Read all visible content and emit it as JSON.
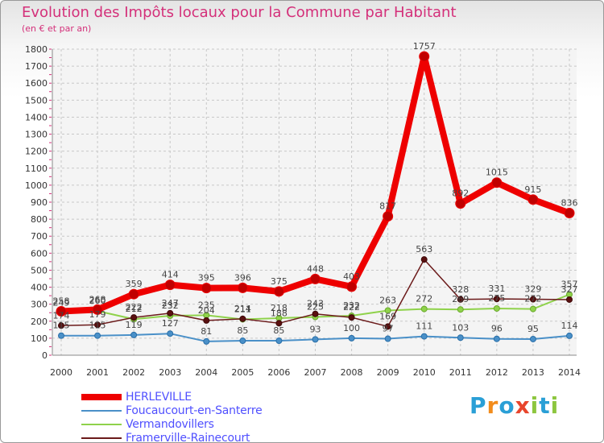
{
  "header": {
    "title": "Evolution des Impôts locaux pour la Commune par Habitant",
    "subtitle": "(en € et par an)"
  },
  "logo": {
    "letters": [
      "P",
      "r",
      "o",
      "x",
      "i",
      "t",
      "i"
    ],
    "colors": [
      "#2a9fd6",
      "#f28c1c",
      "#2a9fd6",
      "#e8452c",
      "#8dc63f",
      "#2a9fd6",
      "#8dc63f"
    ]
  },
  "chart_data": {
    "type": "line",
    "title": "Evolution des Impôts locaux pour la Commune par Habitant",
    "subtitle": "(en € et par an)",
    "xlabel": "",
    "ylabel": "",
    "ylim": [
      0,
      1800
    ],
    "yticks": [
      0,
      100,
      200,
      300,
      400,
      500,
      600,
      700,
      800,
      900,
      1000,
      1100,
      1200,
      1300,
      1400,
      1500,
      1600,
      1700,
      1800
    ],
    "grid": true,
    "legend_position": "bottom-left",
    "categories": [
      "2000",
      "2001",
      "2002",
      "2003",
      "2004",
      "2005",
      "2006",
      "2007",
      "2008",
      "2009",
      "2010",
      "2011",
      "2012",
      "2013",
      "2014"
    ],
    "series": [
      {
        "name": "HERLEVILLE",
        "color": "#ee0000",
        "values": [
          258,
          268,
          359,
          414,
          395,
          396,
          375,
          448,
          403,
          817,
          1757,
          892,
          1015,
          915,
          836
        ]
      },
      {
        "name": "Foucaucourt-en-Santerre",
        "color": "#4a90c8",
        "values": [
          115,
          115,
          119,
          127,
          81,
          85,
          85,
          93,
          100,
          97,
          111,
          103,
          96,
          95,
          114
        ]
      },
      {
        "name": "Vermandovillers",
        "color": "#8fd24b",
        "values": [
          249,
          260,
          212,
          232,
          235,
          211,
          218,
          225,
          232,
          263,
          272,
          269,
          275,
          272,
          357
        ]
      },
      {
        "name": "Framerville-Rainecourt",
        "color": "#6b1a1a",
        "values": [
          174,
          179,
          222,
          247,
          204,
          214,
          188,
          243,
          222,
          169,
          563,
          328,
          331,
          329,
          327
        ]
      }
    ]
  }
}
